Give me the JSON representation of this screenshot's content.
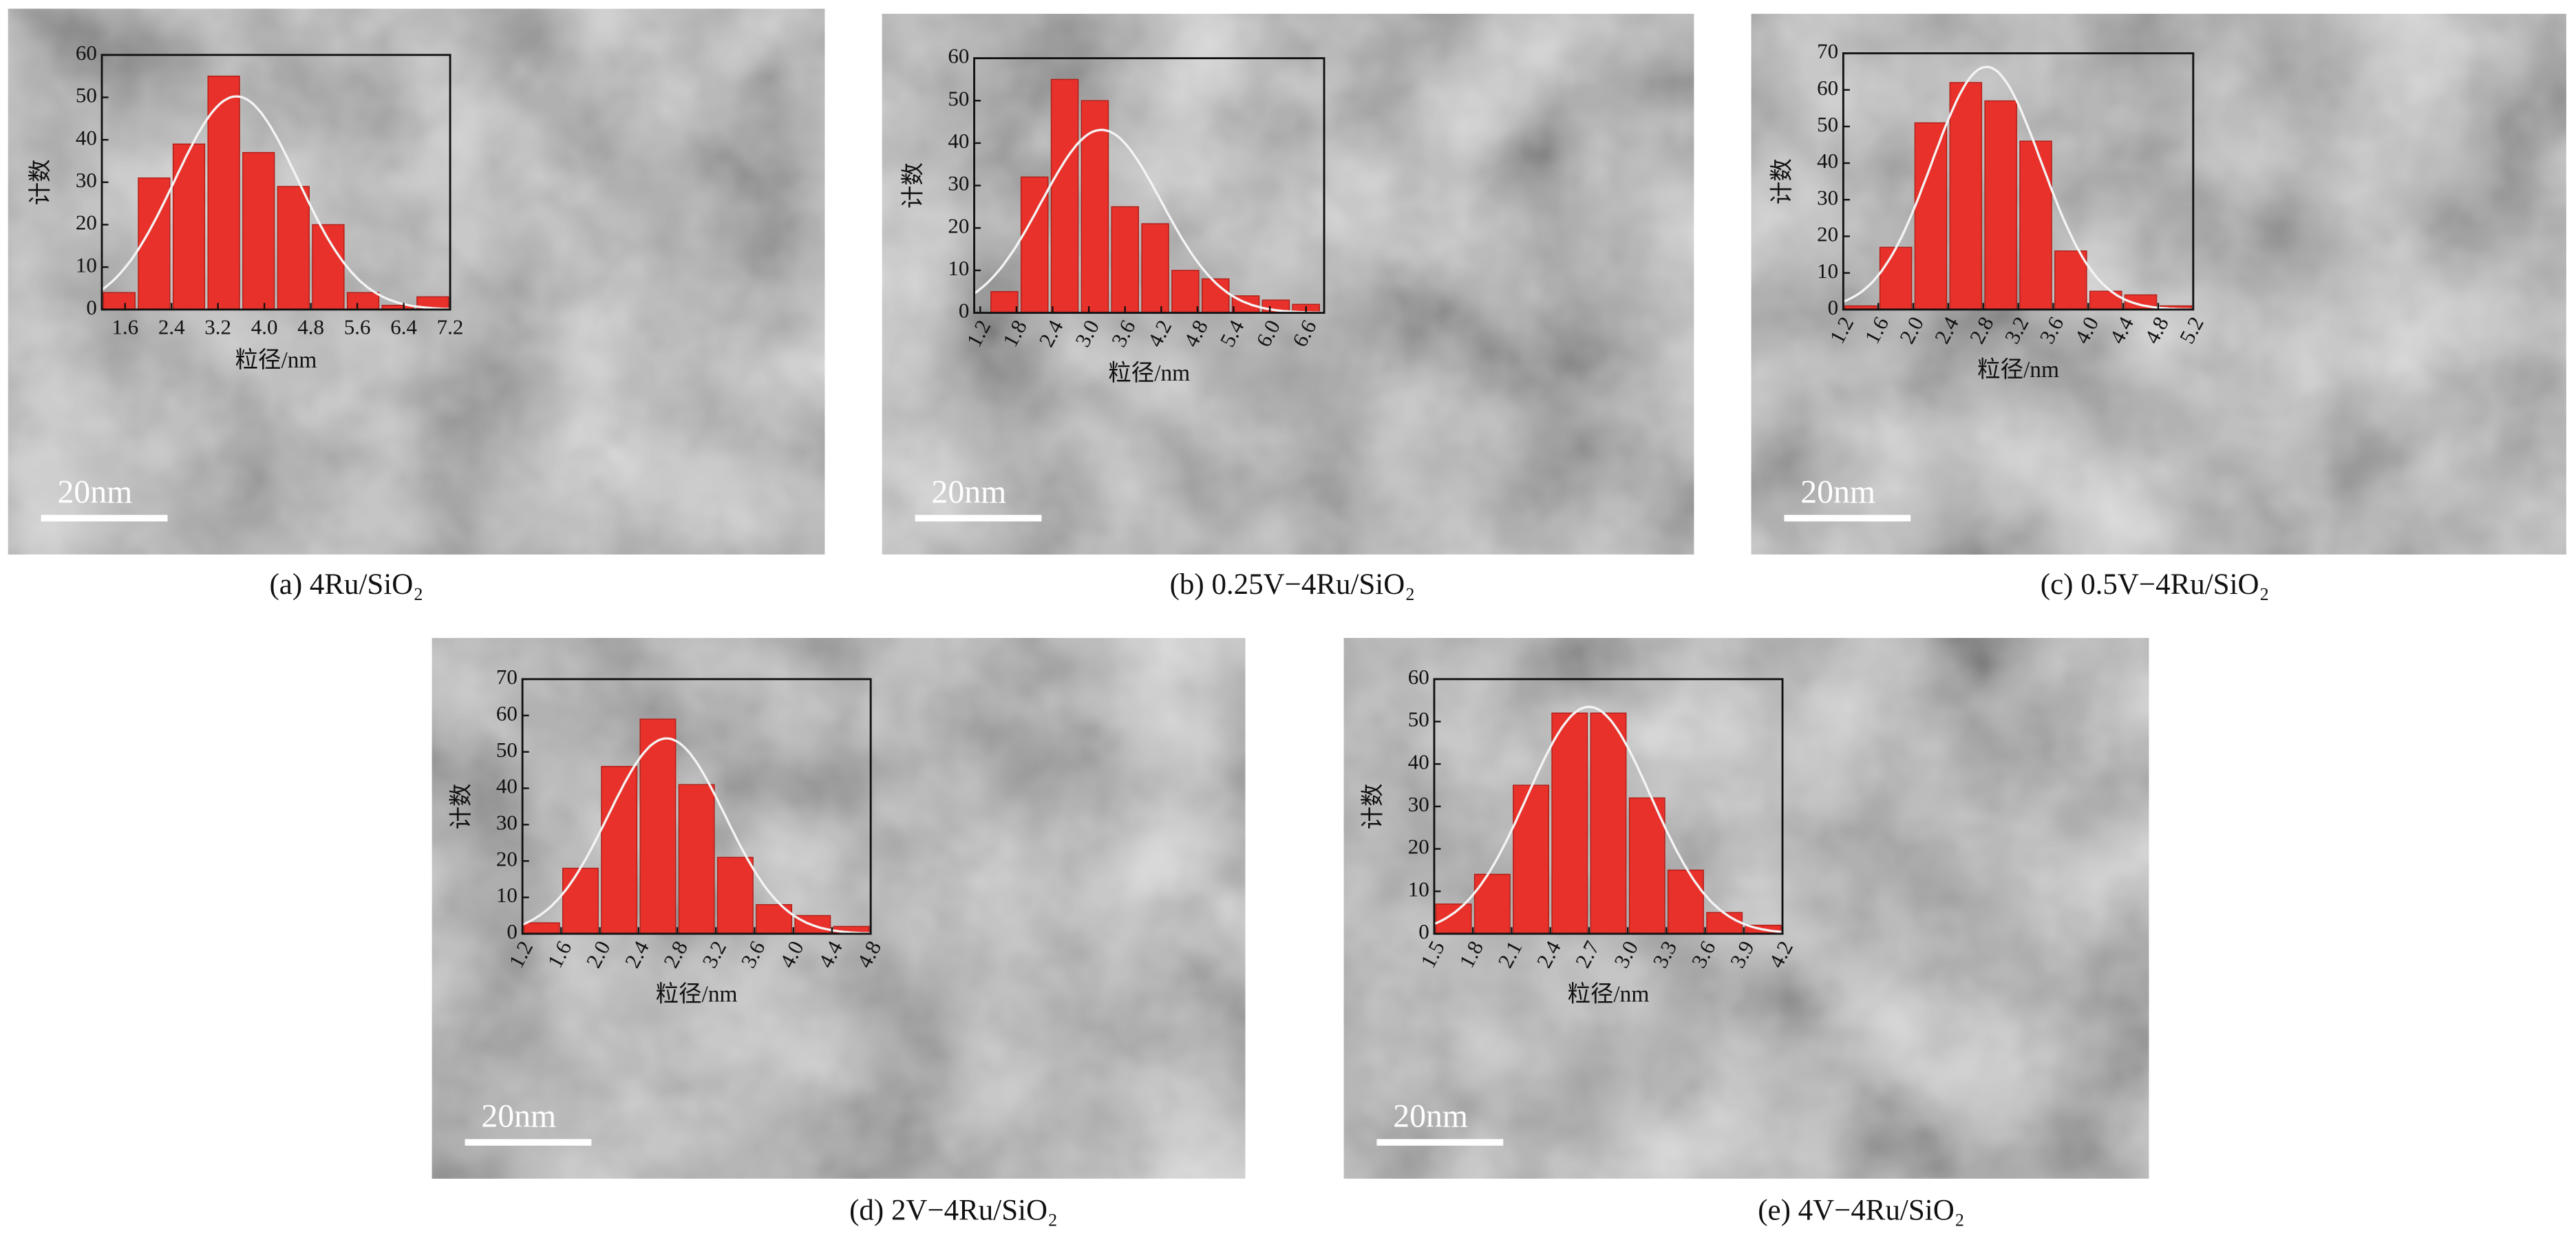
{
  "chart_data": [
    {
      "type": "histogram",
      "title": "(a) 4Ru/SiO₂",
      "xlabel": "粒径/nm",
      "ylabel": "计数",
      "scale_bar": "20nm",
      "color": "#e8312a",
      "rotated_xticks": false,
      "bins": [
        1.2,
        1.8,
        2.4,
        3.0,
        3.6,
        4.2,
        4.8,
        5.4,
        6.0,
        6.6,
        7.2
      ],
      "values": [
        4,
        31,
        39,
        55,
        37,
        29,
        20,
        4,
        1,
        3
      ],
      "xlim": [
        1.2,
        7.2
      ],
      "ylim": [
        0,
        60
      ],
      "xticks": [
        1.6,
        2.4,
        3.2,
        {
          "value": 4,
          "label": "4.0"
        },
        4.8,
        5.6,
        6.4,
        7.2
      ],
      "yticks": [
        0,
        10,
        20,
        30,
        40,
        50,
        60
      ]
    },
    {
      "type": "histogram",
      "title": "(b) 0.25V−4Ru/SiO₂",
      "xlabel": "粒径/nm",
      "ylabel": "计数",
      "scale_bar": "20nm",
      "color": "#e8312a",
      "rotated_xticks": true,
      "bins": [
        1.35,
        1.85,
        2.35,
        2.85,
        3.35,
        3.85,
        4.35,
        4.85,
        5.35,
        5.85,
        6.35,
        6.85
      ],
      "values": [
        5,
        32,
        55,
        50,
        25,
        21,
        10,
        8,
        4,
        3,
        2
      ],
      "xlim": [
        1.1,
        6.9
      ],
      "ylim": [
        0,
        60
      ],
      "xticks": [
        1.2,
        1.8,
        2.4,
        {
          "value": 3,
          "label": "3.0"
        },
        3.6,
        4.2,
        4.8,
        5.4,
        {
          "value": 6,
          "label": "6.0"
        },
        6.6
      ],
      "yticks": [
        0,
        10,
        20,
        30,
        40,
        50,
        60
      ]
    },
    {
      "type": "histogram",
      "title": "(c) 0.5V−4Ru/SiO₂",
      "xlabel": "粒径/nm",
      "ylabel": "计数",
      "scale_bar": "20nm",
      "color": "#e8312a",
      "rotated_xticks": true,
      "bins": [
        1.2,
        1.6,
        2.0,
        2.4,
        2.8,
        3.2,
        3.6,
        4.0,
        4.4,
        4.8,
        5.2
      ],
      "values": [
        1,
        17,
        51,
        62,
        57,
        46,
        16,
        5,
        4,
        1
      ],
      "xlim": [
        1.2,
        5.2
      ],
      "ylim": [
        0,
        70
      ],
      "xticks": [
        1.2,
        1.6,
        {
          "value": 2,
          "label": "2.0"
        },
        2.4,
        2.8,
        3.2,
        3.6,
        {
          "value": 4,
          "label": "4.0"
        },
        4.4,
        4.8,
        5.2
      ],
      "yticks": [
        0,
        10,
        20,
        30,
        40,
        50,
        60,
        70
      ]
    },
    {
      "type": "histogram",
      "title": "(d) 2V−4Ru/SiO₂",
      "xlabel": "粒径/nm",
      "ylabel": "计数",
      "scale_bar": "20nm",
      "color": "#e8312a",
      "rotated_xticks": true,
      "bins": [
        1.2,
        1.6,
        2.0,
        2.4,
        2.8,
        3.2,
        3.6,
        4.0,
        4.4,
        4.8
      ],
      "values": [
        3,
        18,
        46,
        59,
        41,
        21,
        8,
        5,
        2
      ],
      "xlim": [
        1.2,
        4.8
      ],
      "ylim": [
        0,
        70
      ],
      "xticks": [
        1.2,
        1.6,
        {
          "value": 2,
          "label": "2.0"
        },
        2.4,
        2.8,
        3.2,
        3.6,
        {
          "value": 4,
          "label": "4.0"
        },
        4.4,
        4.8
      ],
      "yticks": [
        0,
        10,
        20,
        30,
        40,
        50,
        60,
        70
      ]
    },
    {
      "type": "histogram",
      "title": "(e) 4V−4Ru/SiO₂",
      "xlabel": "粒径/nm",
      "ylabel": "计数",
      "scale_bar": "20nm",
      "color": "#e8312a",
      "rotated_xticks": true,
      "bins": [
        1.5,
        1.8,
        2.1,
        2.4,
        2.7,
        3.0,
        3.3,
        3.6,
        3.9,
        4.2
      ],
      "values": [
        7,
        14,
        35,
        52,
        52,
        32,
        15,
        5,
        2
      ],
      "xlim": [
        1.5,
        4.2
      ],
      "ylim": [
        0,
        60
      ],
      "xticks": [
        1.5,
        1.8,
        2.1,
        2.4,
        2.7,
        {
          "value": 3,
          "label": "3.0"
        },
        3.3,
        3.6,
        3.9,
        4.2
      ],
      "yticks": [
        0,
        10,
        20,
        30,
        40,
        50,
        60
      ]
    }
  ]
}
